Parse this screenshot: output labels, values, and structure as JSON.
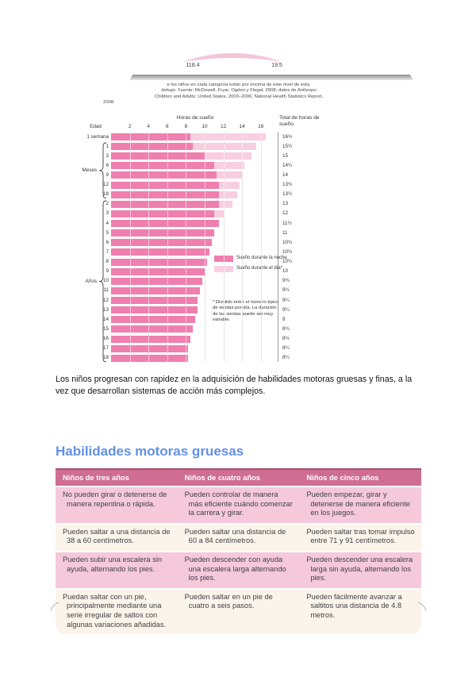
{
  "figure_top": {
    "value_left": "118.4",
    "value_right": "19.5",
    "caption_lines": [
      "e los niños en cada categoría están por encima de este nivel de esta.",
      "debajo. Fuente: McDowell, Fryar, Ogden y Flegal, 2008; datos de Anthropo",
      "Children and Adults: United States, 2003–2006, National Health Statistics Report,",
      "2008."
    ]
  },
  "chart_data": {
    "type": "bar",
    "orientation": "horizontal",
    "title": "Horas de sueño",
    "age_label": "Edad",
    "total_header": "Total de horas de sueño",
    "x_ticks": [
      2,
      4,
      6,
      8,
      10,
      12,
      14,
      16
    ],
    "xlim": [
      0,
      16
    ],
    "legend": [
      {
        "name": "Sueño durante la noche",
        "color": "#ee7fae"
      },
      {
        "name": "Sueño durante el día*",
        "color": "#f8cfe0"
      }
    ],
    "footnote": "* Dividido entre el número típico de siestas por día. La duración de las siestas puede ser muy variable.",
    "groups": [
      {
        "label": "Meses",
        "from": 1,
        "to": 6
      },
      {
        "label": "Años",
        "from": 7,
        "to": 23
      }
    ],
    "rows": [
      {
        "label": "1 semana",
        "night": 8.5,
        "day": 8.0,
        "total": "16½"
      },
      {
        "label": "1",
        "night": 8.75,
        "day": 6.75,
        "total": "15½"
      },
      {
        "label": "3",
        "night": 10.0,
        "day": 5.0,
        "total": "15"
      },
      {
        "label": "6",
        "night": 11.0,
        "day": 3.25,
        "total": "14¼"
      },
      {
        "label": "9",
        "night": 11.25,
        "day": 2.75,
        "total": "14"
      },
      {
        "label": "12",
        "night": 11.5,
        "day": 2.25,
        "total": "13¾"
      },
      {
        "label": "18",
        "night": 11.5,
        "day": 2.0,
        "total": "13½"
      },
      {
        "label": "2",
        "night": 11.5,
        "day": 1.5,
        "total": "13"
      },
      {
        "label": "3",
        "night": 11.0,
        "day": 1.0,
        "total": "12"
      },
      {
        "label": "4",
        "night": 11.5,
        "day": 0,
        "total": "11½"
      },
      {
        "label": "5",
        "night": 11.0,
        "day": 0,
        "total": "11"
      },
      {
        "label": "6",
        "night": 10.75,
        "day": 0,
        "total": "10¾"
      },
      {
        "label": "7",
        "night": 10.5,
        "day": 0,
        "total": "10½"
      },
      {
        "label": "8",
        "night": 10.25,
        "day": 0,
        "total": "10¼"
      },
      {
        "label": "9",
        "night": 10.0,
        "day": 0,
        "total": "10"
      },
      {
        "label": "10",
        "night": 9.75,
        "day": 0,
        "total": "9¾"
      },
      {
        "label": "11",
        "night": 9.5,
        "day": 0,
        "total": "9½"
      },
      {
        "label": "12",
        "night": 9.25,
        "day": 0,
        "total": "9¼"
      },
      {
        "label": "13",
        "night": 9.25,
        "day": 0,
        "total": "9¼"
      },
      {
        "label": "14",
        "night": 9.0,
        "day": 0,
        "total": "9"
      },
      {
        "label": "15",
        "night": 8.75,
        "day": 0,
        "total": "8¾"
      },
      {
        "label": "16",
        "night": 8.5,
        "day": 0,
        "total": "8½"
      },
      {
        "label": "17",
        "night": 8.25,
        "day": 0,
        "total": "8¼"
      },
      {
        "label": "18",
        "night": 8.25,
        "day": 0,
        "total": "8¼"
      }
    ]
  },
  "paragraph": "Los niños progresan con rapidez en la adquisición de habilidades motoras gruesas y finas, a la vez que desarrollan sistemas de acción más complejos.",
  "section": {
    "heading": "Habilidades motoras gruesas"
  },
  "table": {
    "headers": [
      "Niños de tres años",
      "Niños de cuatro años",
      "Niños de cinco años"
    ],
    "rows": [
      [
        "No pueden girar o detenerse de manera repentina o rápida.",
        "Pueden controlar de manera más eficiente cuándo comenzar la carrera y girar.",
        "Pueden empezar, girar y detenerse de manera eficiente en los juegos."
      ],
      [
        "Pueden saltar a una distancia de 38 a 60 centímetros.",
        "Pueden saltar una distancia de 60 a 84 centímetros.",
        "Pueden saltar tras tomar impulso entre 71 y 91 centímetros."
      ],
      [
        "Pueden subir una escalera sin ayuda, alternando los pies.",
        "Pueden descender con ayuda una escalera larga alternando los pies.",
        "Pueden descender una escalera larga sin ayuda, alternando los pies."
      ],
      [
        "Puedan saltar con un pie, principalmente mediante una serie irregular de saltos con algunas variaciones añadidas.",
        "Pueden saltar en un pie de cuatro a seis pasos.",
        "Pueden fácilmente avanzar a saltitos una distancia de 4.8 metros."
      ]
    ],
    "colors": {
      "header_bg": "#d06d92",
      "header_border": "#a84f74",
      "row_pink": "#f5c9da",
      "row_cream": "#fbf4ea"
    }
  }
}
